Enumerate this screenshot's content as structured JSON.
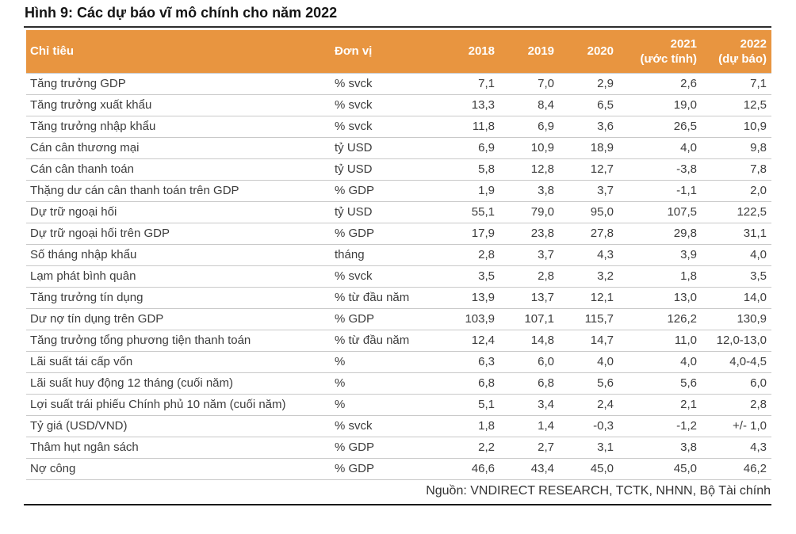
{
  "figure": {
    "title": "Hình 9: Các dự báo vĩ mô chính cho năm 2022",
    "source": "Nguồn: VNDIRECT RESEARCH, TCTK, NHNN, Bộ Tài chính"
  },
  "colors": {
    "header_bg": "#E89540",
    "header_text": "#FFFFFF",
    "body_text": "#3D3D3D",
    "row_border": "#C9C9C9",
    "dark_rule": "#191919"
  },
  "table": {
    "columns": [
      {
        "label": "Chỉ tiêu"
      },
      {
        "label": "Đơn vị"
      },
      {
        "label": "2018"
      },
      {
        "label": "2019"
      },
      {
        "label": "2020"
      },
      {
        "label": "2021\n(ước tính)"
      },
      {
        "label": "2022\n(dự báo)"
      }
    ],
    "rows": [
      {
        "label": "Tăng trưởng GDP",
        "unit": "% svck",
        "values": [
          "7,1",
          "7,0",
          "2,9",
          "2,6",
          "7,1"
        ]
      },
      {
        "label": "Tăng trưởng xuất khẩu",
        "unit": "% svck",
        "values": [
          "13,3",
          "8,4",
          "6,5",
          "19,0",
          "12,5"
        ]
      },
      {
        "label": "Tăng trưởng nhập khẩu",
        "unit": "% svck",
        "values": [
          "11,8",
          "6,9",
          "3,6",
          "26,5",
          "10,9"
        ]
      },
      {
        "label": "Cán cân thương mại",
        "unit": "tỷ USD",
        "values": [
          "6,9",
          "10,9",
          "18,9",
          "4,0",
          "9,8"
        ]
      },
      {
        "label": "Cán cân thanh toán",
        "unit": "tỷ USD",
        "values": [
          "5,8",
          "12,8",
          "12,7",
          "-3,8",
          "7,8"
        ]
      },
      {
        "label": "Thặng dư cán cân thanh toán trên GDP",
        "unit": "% GDP",
        "values": [
          "1,9",
          "3,8",
          "3,7",
          "-1,1",
          "2,0"
        ]
      },
      {
        "label": "Dự trữ ngoại hối",
        "unit": "tỷ USD",
        "values": [
          "55,1",
          "79,0",
          "95,0",
          "107,5",
          "122,5"
        ]
      },
      {
        "label": "Dự trữ ngoại hối trên GDP",
        "unit": "% GDP",
        "values": [
          "17,9",
          "23,8",
          "27,8",
          "29,8",
          "31,1"
        ]
      },
      {
        "label": "Số tháng nhập khẩu",
        "unit": "tháng",
        "values": [
          "2,8",
          "3,7",
          "4,3",
          "3,9",
          "4,0"
        ]
      },
      {
        "label": "Lạm phát bình quân",
        "unit": "% svck",
        "values": [
          "3,5",
          "2,8",
          "3,2",
          "1,8",
          "3,5"
        ]
      },
      {
        "label": "Tăng trưởng tín dụng",
        "unit": "% từ đầu năm",
        "values": [
          "13,9",
          "13,7",
          "12,1",
          "13,0",
          "14,0"
        ]
      },
      {
        "label": "Dư nợ tín dụng trên GDP",
        "unit": "% GDP",
        "values": [
          "103,9",
          "107,1",
          "115,7",
          "126,2",
          "130,9"
        ]
      },
      {
        "label": "Tăng trưởng tổng phương tiện thanh toán",
        "unit": "% từ đầu năm",
        "values": [
          "12,4",
          "14,8",
          "14,7",
          "11,0",
          "12,0-13,0"
        ]
      },
      {
        "label": "Lãi suất tái cấp vốn",
        "unit": "%",
        "values": [
          "6,3",
          "6,0",
          "4,0",
          "4,0",
          "4,0-4,5"
        ]
      },
      {
        "label": "Lãi suất huy động 12 tháng (cuối năm)",
        "unit": "%",
        "values": [
          "6,8",
          "6,8",
          "5,6",
          "5,6",
          "6,0"
        ]
      },
      {
        "label": "Lợi suất trái phiếu Chính phủ 10 năm (cuối năm)",
        "unit": "%",
        "values": [
          "5,1",
          "3,4",
          "2,4",
          "2,1",
          "2,8"
        ]
      },
      {
        "label": "Tỷ giá (USD/VND)",
        "unit": "% svck",
        "values": [
          "1,8",
          "1,4",
          "-0,3",
          "-1,2",
          "+/- 1,0"
        ]
      },
      {
        "label": "Thâm hụt ngân sách",
        "unit": "% GDP",
        "values": [
          "2,2",
          "2,7",
          "3,1",
          "3,8",
          "4,3"
        ]
      },
      {
        "label": "Nợ công",
        "unit": "% GDP",
        "values": [
          "46,6",
          "43,4",
          "45,0",
          "45,0",
          "46,2"
        ]
      }
    ]
  }
}
